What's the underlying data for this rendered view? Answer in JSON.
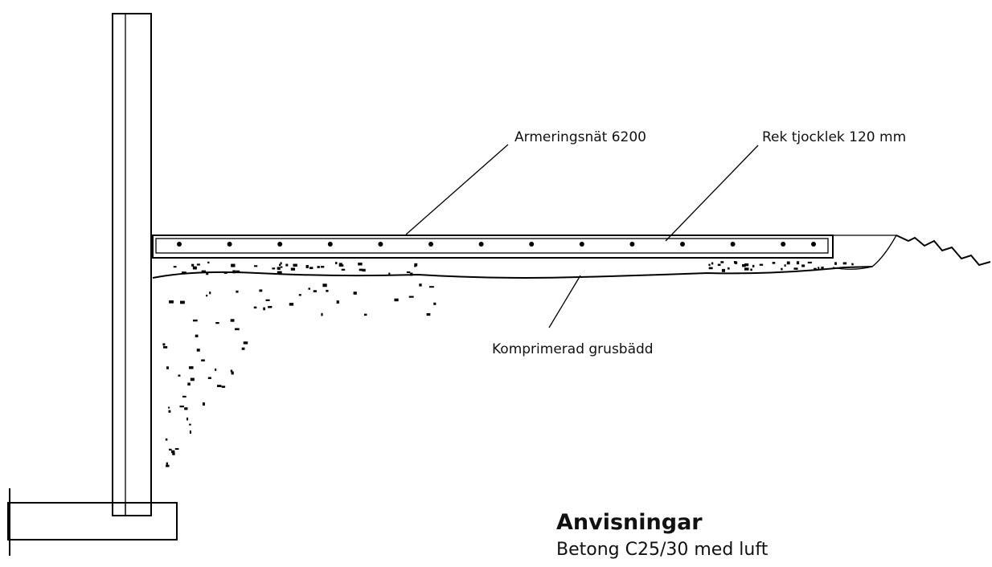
{
  "labels": {
    "reinforcement": "Armeringsnät 6200",
    "thickness": "Rek tjocklek 120 mm",
    "gravel": "Komprimerad grusbädd"
  },
  "notes": {
    "title": "Anvisningar",
    "text": "Betong C25/30 med luft"
  }
}
